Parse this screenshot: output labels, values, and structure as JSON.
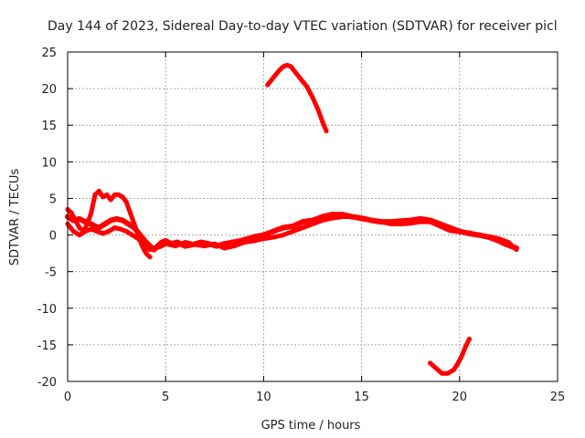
{
  "chart_data": {
    "type": "line",
    "title": "Day 144 of 2023, Sidereal Day-to-day VTEC variation (SDTVAR) for receiver picl",
    "xlabel": "GPS time / hours",
    "ylabel": "SDTVAR / TECUs",
    "xlim": [
      0,
      25
    ],
    "ylim": [
      -20,
      25
    ],
    "xticks": [
      0,
      5,
      10,
      15,
      20,
      25
    ],
    "yticks": [
      -20,
      -15,
      -10,
      -5,
      0,
      5,
      10,
      15,
      20,
      25
    ],
    "grid": true,
    "colors": {
      "series": "#ff0000",
      "grid": "#aaaaaa",
      "frame": "#000000"
    },
    "series": [
      {
        "name": "band-1",
        "color": "#ff0000",
        "width": 6,
        "x": [
          0.0,
          0.3,
          0.6,
          0.9,
          1.2,
          1.4,
          1.6,
          1.9,
          2.2,
          2.5,
          2.8,
          3.1,
          3.4,
          3.7,
          4.0,
          4.2,
          4.4,
          4.6,
          4.8,
          5.0,
          5.3,
          5.6,
          6.0,
          6.4,
          6.8,
          7.2,
          7.6,
          8.0,
          8.4,
          8.8,
          9.2,
          9.6,
          10.0,
          10.5,
          11.0,
          11.5,
          12.0,
          12.5,
          13.0,
          13.5,
          14.0,
          14.5,
          15.0,
          15.5,
          16.0,
          16.5,
          17.0,
          17.5,
          18.0,
          18.5,
          19.0,
          19.5,
          20.0,
          20.5,
          21.0,
          21.5,
          22.0,
          22.3,
          22.6,
          22.9
        ],
        "y": [
          2.5,
          2.0,
          2.2,
          1.8,
          1.5,
          1.2,
          1.0,
          1.5,
          2.0,
          2.2,
          2.0,
          1.5,
          1.0,
          0.0,
          -1.0,
          -1.5,
          -2.0,
          -1.5,
          -1.0,
          -0.8,
          -1.2,
          -1.0,
          -1.5,
          -1.3,
          -1.0,
          -1.2,
          -1.5,
          -1.2,
          -1.0,
          -0.8,
          -0.5,
          -0.2,
          0.0,
          0.5,
          1.0,
          1.2,
          1.8,
          2.0,
          2.5,
          2.8,
          2.8,
          2.5,
          2.3,
          2.0,
          1.8,
          1.8,
          1.9,
          2.0,
          2.2,
          2.0,
          1.5,
          1.0,
          0.5,
          0.2,
          0.0,
          -0.3,
          -0.8,
          -1.2,
          -1.5,
          -1.8
        ]
      },
      {
        "name": "band-2",
        "color": "#ff0000",
        "width": 5,
        "x": [
          0.0,
          0.2,
          0.4,
          0.6,
          0.8,
          1.0,
          1.2,
          1.4,
          1.6,
          1.8,
          2.0,
          2.2,
          2.4,
          2.6,
          2.8,
          3.0,
          3.2,
          3.4,
          3.6,
          3.8,
          4.0,
          4.2
        ],
        "y": [
          3.5,
          3.0,
          2.0,
          1.0,
          0.5,
          1.5,
          3.0,
          5.5,
          6.0,
          5.2,
          5.5,
          4.8,
          5.5,
          5.5,
          5.2,
          4.5,
          3.0,
          1.5,
          0.0,
          -1.5,
          -2.5,
          -3.0
        ]
      },
      {
        "name": "band-3",
        "color": "#ff0000",
        "width": 5,
        "x": [
          0.0,
          0.3,
          0.6,
          0.9,
          1.2,
          1.5,
          1.8,
          2.1,
          2.4,
          2.7,
          3.0,
          3.3,
          3.6,
          3.9,
          4.2,
          4.5,
          4.8,
          5.0,
          5.5,
          6.0,
          6.5,
          7.0,
          7.5,
          8.0,
          8.5,
          9.0,
          9.5,
          10.0,
          10.5,
          11.0,
          11.5,
          12.0,
          12.5,
          13.0,
          13.5,
          14.0,
          14.5,
          15.0,
          15.5,
          16.0,
          16.5,
          17.0,
          17.5,
          18.0,
          18.5,
          19.0,
          19.5,
          20.0,
          20.5,
          21.0,
          21.5,
          22.0,
          22.5,
          22.9
        ],
        "y": [
          1.5,
          0.5,
          0.0,
          0.5,
          0.8,
          0.5,
          0.2,
          0.5,
          1.0,
          0.8,
          0.5,
          0.0,
          -0.5,
          -1.5,
          -2.0,
          -1.8,
          -1.5,
          -1.2,
          -1.5,
          -1.0,
          -1.3,
          -1.5,
          -1.2,
          -1.8,
          -1.5,
          -1.0,
          -0.8,
          -0.5,
          -0.3,
          0.0,
          0.5,
          1.0,
          1.5,
          2.0,
          2.3,
          2.5,
          2.5,
          2.2,
          2.0,
          1.8,
          1.5,
          1.5,
          1.6,
          1.8,
          1.8,
          1.2,
          0.6,
          0.4,
          0.3,
          0.0,
          -0.2,
          -0.5,
          -1.0,
          -2.0
        ]
      },
      {
        "name": "arc-top",
        "color": "#ff0000",
        "width": 5,
        "x": [
          10.2,
          10.5,
          10.8,
          11.0,
          11.2,
          11.4,
          11.6,
          11.9,
          12.2,
          12.5,
          12.8,
          13.0,
          13.2
        ],
        "y": [
          20.5,
          21.5,
          22.5,
          23.0,
          23.2,
          23.0,
          22.3,
          21.3,
          20.3,
          18.8,
          17.0,
          15.5,
          14.2
        ]
      },
      {
        "name": "arc-bottom",
        "color": "#ff0000",
        "width": 5,
        "x": [
          18.5,
          18.8,
          19.1,
          19.4,
          19.7,
          19.9,
          20.1,
          20.3,
          20.5
        ],
        "y": [
          -17.5,
          -18.2,
          -18.9,
          -18.9,
          -18.4,
          -17.6,
          -16.6,
          -15.3,
          -14.2
        ]
      }
    ]
  }
}
